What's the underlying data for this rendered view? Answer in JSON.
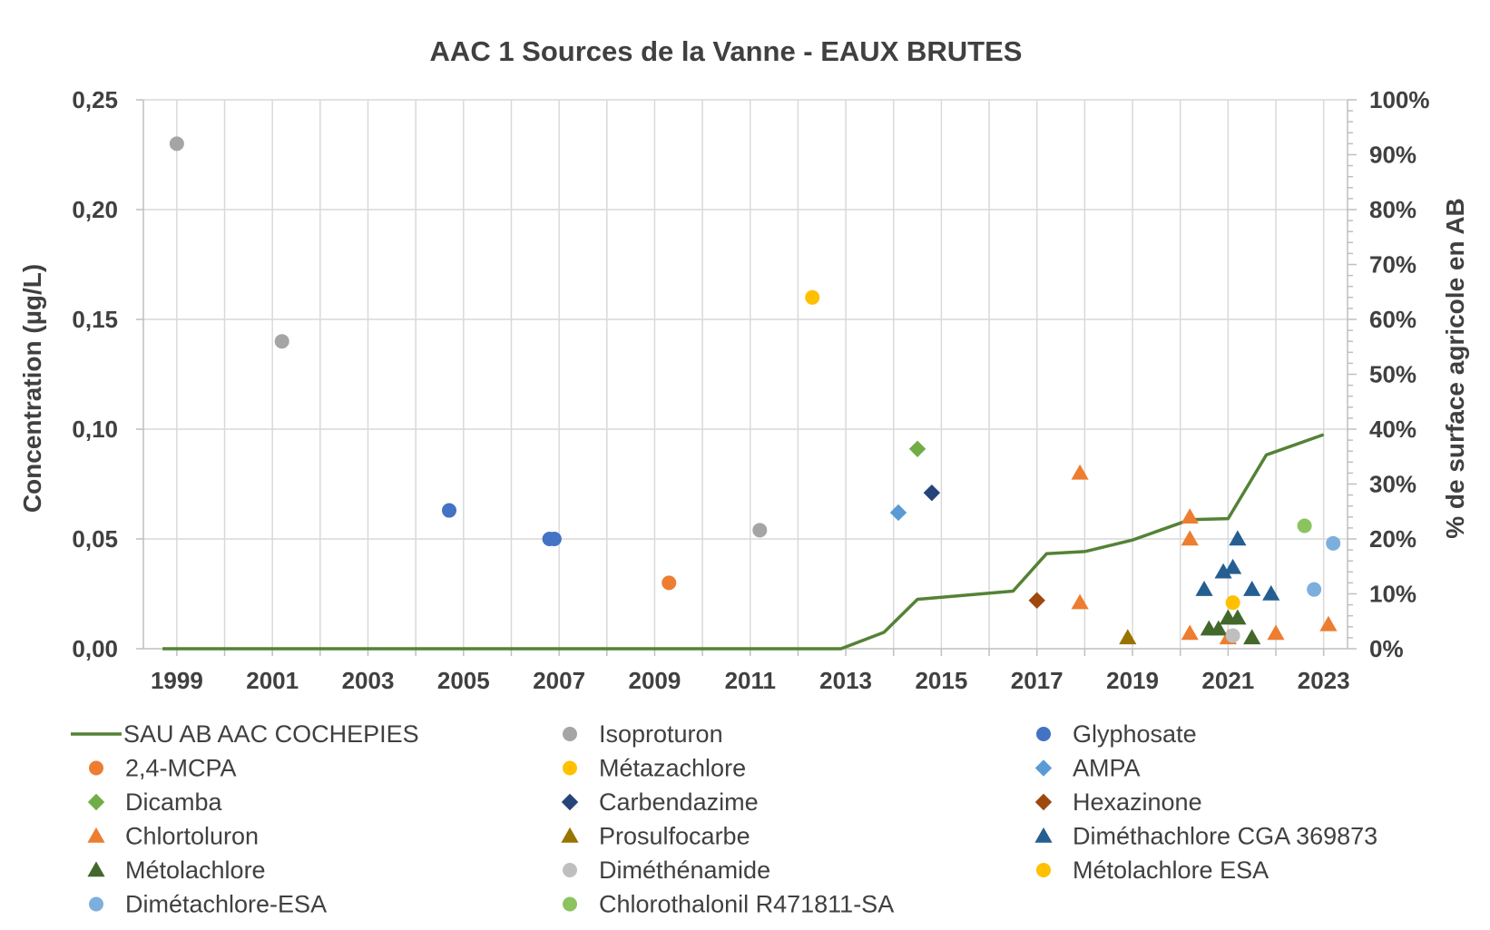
{
  "chart_data": {
    "type": "scatter",
    "title": "AAC 1 Sources de la Vanne - EAUX BRUTES",
    "ylabel": "Concentration (µg/L)",
    "y2label": "% de surface agricole en AB",
    "x_ticks": [
      "1999",
      "2001",
      "2003",
      "2005",
      "2007",
      "2009",
      "2011",
      "2013",
      "2015",
      "2017",
      "2019",
      "2021",
      "2023"
    ],
    "y_ticks": [
      "0,00",
      "0,05",
      "0,10",
      "0,15",
      "0,20",
      "0,25"
    ],
    "y2_ticks": [
      "0%",
      "10%",
      "20%",
      "30%",
      "40%",
      "50%",
      "60%",
      "70%",
      "80%",
      "90%",
      "100%"
    ],
    "xlim": [
      1998.3,
      2023.5
    ],
    "ylim": [
      0,
      0.25
    ],
    "y2lim": [
      0,
      100
    ],
    "grid": true,
    "legend_position": "bottom",
    "line_series": {
      "name": "SAU AB AAC COCHEPIES",
      "color": "#548235",
      "axis": "right",
      "points": [
        [
          1998.7,
          0
        ],
        [
          2012.9,
          0
        ],
        [
          2013.8,
          3
        ],
        [
          2014.5,
          9
        ],
        [
          2016.5,
          10.5
        ],
        [
          2017.2,
          17.3
        ],
        [
          2018,
          17.7
        ],
        [
          2019,
          19.8
        ],
        [
          2020.2,
          23.5
        ],
        [
          2021,
          23.7
        ],
        [
          2021.8,
          35.3
        ],
        [
          2023,
          39
        ]
      ]
    },
    "scatter_series": [
      {
        "name": "Isoproturon",
        "marker": "circle",
        "color": "#a5a5a5",
        "points": [
          [
            1999,
            0.23
          ],
          [
            2001.2,
            0.14
          ],
          [
            2011.2,
            0.054
          ]
        ]
      },
      {
        "name": "Glyphosate",
        "marker": "circle",
        "color": "#4472c4",
        "points": [
          [
            2004.7,
            0.063
          ],
          [
            2006.8,
            0.05
          ],
          [
            2006.9,
            0.05
          ]
        ]
      },
      {
        "name": "2,4-MCPA",
        "marker": "circle",
        "color": "#ed7d31",
        "points": [
          [
            2009.3,
            0.03
          ]
        ]
      },
      {
        "name": "Métazachlore",
        "marker": "circle",
        "color": "#ffc000",
        "points": [
          [
            2012.3,
            0.16
          ]
        ]
      },
      {
        "name": "AMPA",
        "marker": "diamond",
        "color": "#5b9bd5",
        "points": [
          [
            2014.1,
            0.062
          ]
        ]
      },
      {
        "name": "Dicamba",
        "marker": "diamond",
        "color": "#70ad47",
        "points": [
          [
            2014.5,
            0.091
          ]
        ]
      },
      {
        "name": "Carbendazime",
        "marker": "diamond",
        "color": "#264478",
        "points": [
          [
            2014.8,
            0.071
          ]
        ]
      },
      {
        "name": "Hexazinone",
        "marker": "diamond",
        "color": "#9e480e",
        "points": [
          [
            2017,
            0.022
          ]
        ]
      },
      {
        "name": "Chlortoluron",
        "marker": "triangle",
        "color": "#ed7d31",
        "points": [
          [
            2017.9,
            0.08
          ],
          [
            2017.9,
            0.021
          ],
          [
            2020.2,
            0.06
          ],
          [
            2020.2,
            0.05
          ],
          [
            2020.2,
            0.007
          ],
          [
            2021,
            0.005
          ],
          [
            2022,
            0.007
          ],
          [
            2023.1,
            0.011
          ]
        ]
      },
      {
        "name": "Prosulfocarbe",
        "marker": "triangle",
        "color": "#997300",
        "points": [
          [
            2018.9,
            0.005
          ]
        ]
      },
      {
        "name": "Diméthachlore CGA 369873",
        "marker": "triangle",
        "color": "#255e91",
        "points": [
          [
            2020.5,
            0.027
          ],
          [
            2020.9,
            0.035
          ],
          [
            2021.1,
            0.037
          ],
          [
            2021.2,
            0.05
          ],
          [
            2021.5,
            0.027
          ],
          [
            2021.9,
            0.025
          ]
        ]
      },
      {
        "name": "Métolachlore",
        "marker": "triangle",
        "color": "#43682b",
        "points": [
          [
            2020.6,
            0.009
          ],
          [
            2020.8,
            0.009
          ],
          [
            2021,
            0.014
          ],
          [
            2021.2,
            0.014
          ],
          [
            2021.5,
            0.005
          ]
        ]
      },
      {
        "name": "Diméthénamide",
        "marker": "circle",
        "color": "#bfbfbf",
        "points": [
          [
            2021.1,
            0.006
          ]
        ]
      },
      {
        "name": "Métolachlore ESA",
        "marker": "circle",
        "color": "#ffc000",
        "points": [
          [
            2021.1,
            0.021
          ]
        ]
      },
      {
        "name": "Dimétachlore-ESA",
        "marker": "circle",
        "color": "#7cafdd",
        "points": [
          [
            2022.8,
            0.027
          ],
          [
            2023.2,
            0.048
          ]
        ]
      },
      {
        "name": "Chlorothalonil R471811-SA",
        "marker": "circle",
        "color": "#8bc45f",
        "points": [
          [
            2022.6,
            0.056
          ]
        ]
      }
    ],
    "legend_order": [
      "SAU AB AAC COCHEPIES",
      "Isoproturon",
      "Glyphosate",
      "2,4-MCPA",
      "Métazachlore",
      "AMPA",
      "Dicamba",
      "Carbendazime",
      "Hexazinone",
      "Chlortoluron",
      "Prosulfocarbe",
      "Diméthachlore CGA 369873",
      "Métolachlore",
      "Diméthénamide",
      "Métolachlore ESA",
      "Dimétachlore-ESA",
      "Chlorothalonil R471811-SA"
    ]
  }
}
